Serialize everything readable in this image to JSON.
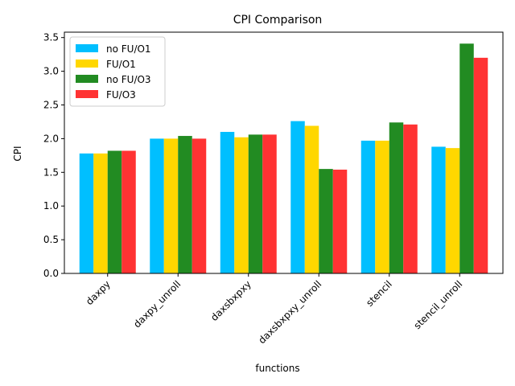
{
  "chart_data": {
    "type": "bar",
    "title": "CPI Comparison",
    "xlabel": "functions",
    "ylabel": "CPI",
    "categories": [
      "daxpy",
      "daxpy_unroll",
      "daxsbxpxy",
      "daxsbxpxy_unroll",
      "stencil",
      "stencil_unroll"
    ],
    "series": [
      {
        "name": "no FU/O1",
        "color": "#00bfff",
        "values": [
          1.78,
          2.0,
          2.1,
          2.26,
          1.97,
          1.88
        ]
      },
      {
        "name": "FU/O1",
        "color": "#ffd700",
        "values": [
          1.78,
          2.0,
          2.02,
          2.19,
          1.97,
          1.86
        ]
      },
      {
        "name": "no FU/O3",
        "color": "#228b22",
        "values": [
          1.82,
          2.04,
          2.06,
          1.55,
          2.24,
          3.41
        ]
      },
      {
        "name": "FU/O3",
        "color": "#ff3333",
        "values": [
          1.82,
          2.0,
          2.06,
          1.54,
          2.21,
          3.2
        ]
      }
    ],
    "ylim": [
      0,
      3.58
    ],
    "yticks": [
      0.0,
      0.5,
      1.0,
      1.5,
      2.0,
      2.5,
      3.0,
      3.5
    ],
    "ytick_labels": [
      "0.0",
      "0.5",
      "1.0",
      "1.5",
      "2.0",
      "2.5",
      "3.0",
      "3.5"
    ],
    "xtick_rotation": 45,
    "grid": false,
    "legend_position": "upper-left"
  }
}
